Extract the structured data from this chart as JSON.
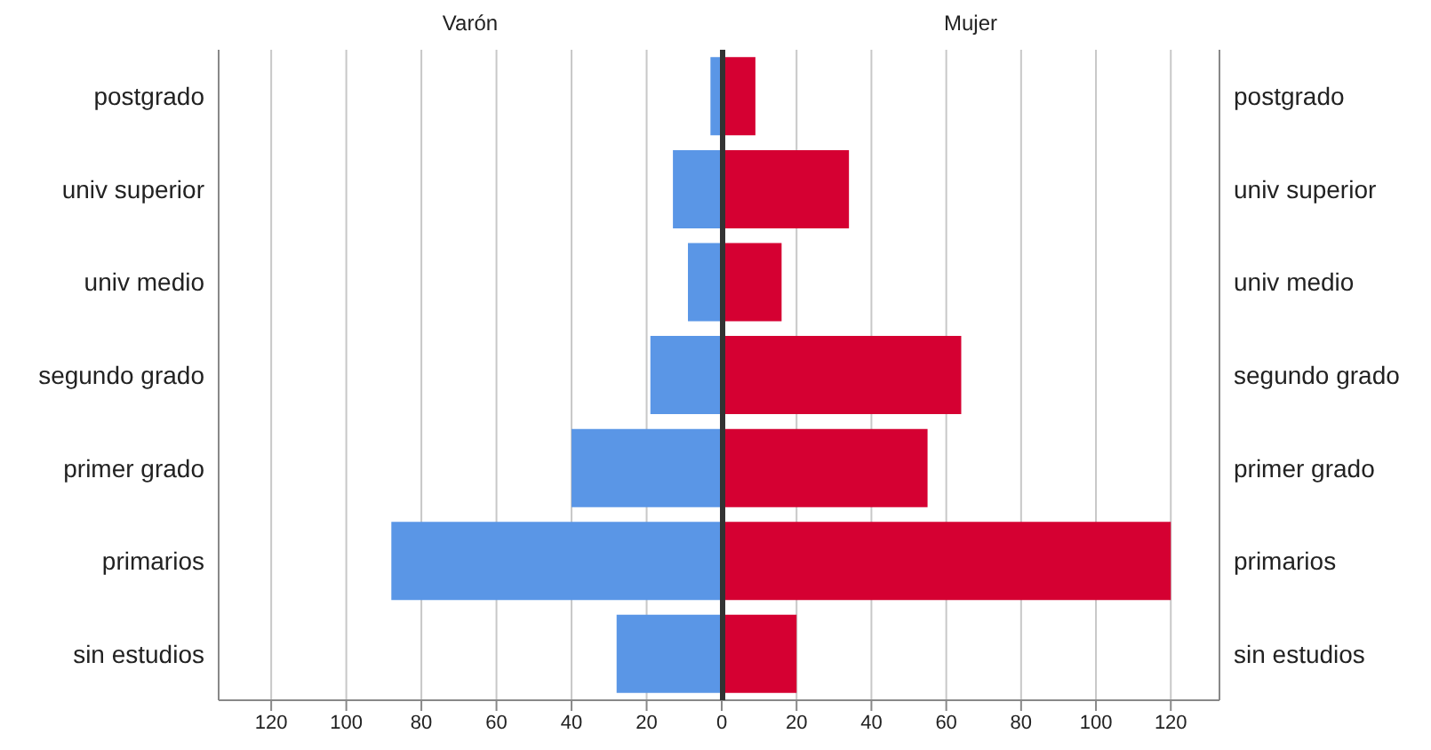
{
  "chart_data": [
    {
      "type": "bar",
      "orientation": "horizontal",
      "title": "Varón",
      "categories": [
        "postgrado",
        "univ superior",
        "univ medio",
        "segundo grado",
        "primer grado",
        "primarios",
        "sin estudios"
      ],
      "series": [
        {
          "color": "#5a96e6",
          "values": [
            3,
            13,
            9,
            19,
            40,
            88,
            28
          ]
        }
      ],
      "xlim": [
        134,
        0
      ],
      "xticks": [
        120,
        100,
        80,
        60,
        40,
        20,
        0
      ],
      "grid": "x"
    },
    {
      "type": "bar",
      "orientation": "horizontal",
      "title": "Mujer",
      "categories": [
        "postgrado",
        "univ superior",
        "univ medio",
        "segundo grado",
        "primer grado",
        "primarios",
        "sin estudios"
      ],
      "series": [
        {
          "color": "#d50032",
          "values": [
            9,
            34,
            16,
            64,
            55,
            120,
            20
          ]
        }
      ],
      "xlim": [
        0,
        133
      ],
      "xticks": [
        {
          "value": 0,
          "label": null
        },
        20,
        40,
        60,
        80,
        100,
        120
      ],
      "grid": "x"
    }
  ]
}
